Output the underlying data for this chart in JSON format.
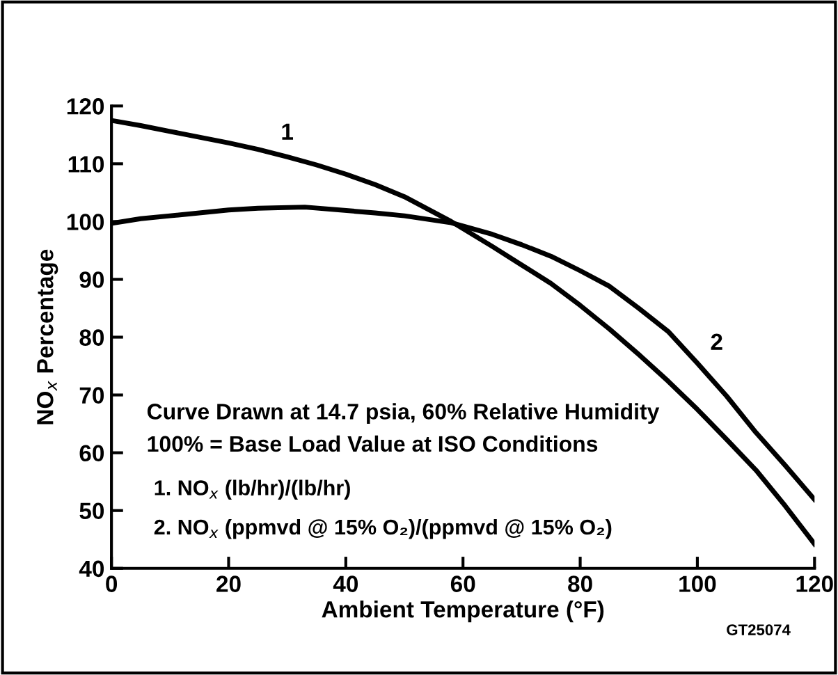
{
  "chart_data": {
    "type": "line",
    "xlabel": "Ambient Temperature (°F)",
    "ylabel": "NO$_{x}$ Percentage",
    "series": [
      {
        "name": "1",
        "color": "#000000",
        "x": [
          0,
          5,
          10,
          15,
          20,
          25,
          30,
          35,
          40,
          45,
          50,
          58,
          65,
          70,
          75,
          80,
          85,
          90,
          95,
          100,
          105,
          110,
          115,
          120
        ],
        "values": [
          117.5,
          116.6,
          115.6,
          114.6,
          113.6,
          112.5,
          111.2,
          109.8,
          108.2,
          106.4,
          104.3,
          100,
          95.7,
          92.5,
          89.3,
          85.5,
          81.4,
          77,
          72.4,
          67.5,
          62.3,
          57,
          50.8,
          44.2
        ]
      },
      {
        "name": "2",
        "color": "#000000",
        "x": [
          0,
          5,
          10,
          20,
          25,
          33,
          45,
          50,
          58,
          65,
          70,
          75,
          80,
          85,
          90,
          95,
          100,
          105,
          110,
          115,
          120
        ],
        "values": [
          99.7,
          100.5,
          101,
          102,
          102.3,
          102.5,
          101.5,
          101,
          99.8,
          97.8,
          96,
          94,
          91.5,
          88.8,
          85,
          81,
          75.5,
          69.8,
          63.5,
          57.8,
          51.9
        ]
      }
    ],
    "xlim": [
      0,
      120
    ],
    "xticks": [
      0,
      20,
      40,
      60,
      80,
      100,
      120
    ],
    "ylim": [
      40,
      120
    ],
    "yticks": [
      40,
      50,
      60,
      70,
      80,
      90,
      100,
      110,
      120
    ],
    "grid": false,
    "marker": "none",
    "line_style": "solid",
    "annotations": [
      "Curve Drawn at 14.7 psia, 60% Relative Humidity",
      "100% = Base Load Value at ISO Conditions",
      "1. NO$_{x}$ (lb/hr)/(lb/hr)",
      "2. NO$_{x}$ (ppmvd @ 15% O₂)/(ppmvd @ 15% O₂)",
      "GT25074"
    ]
  }
}
